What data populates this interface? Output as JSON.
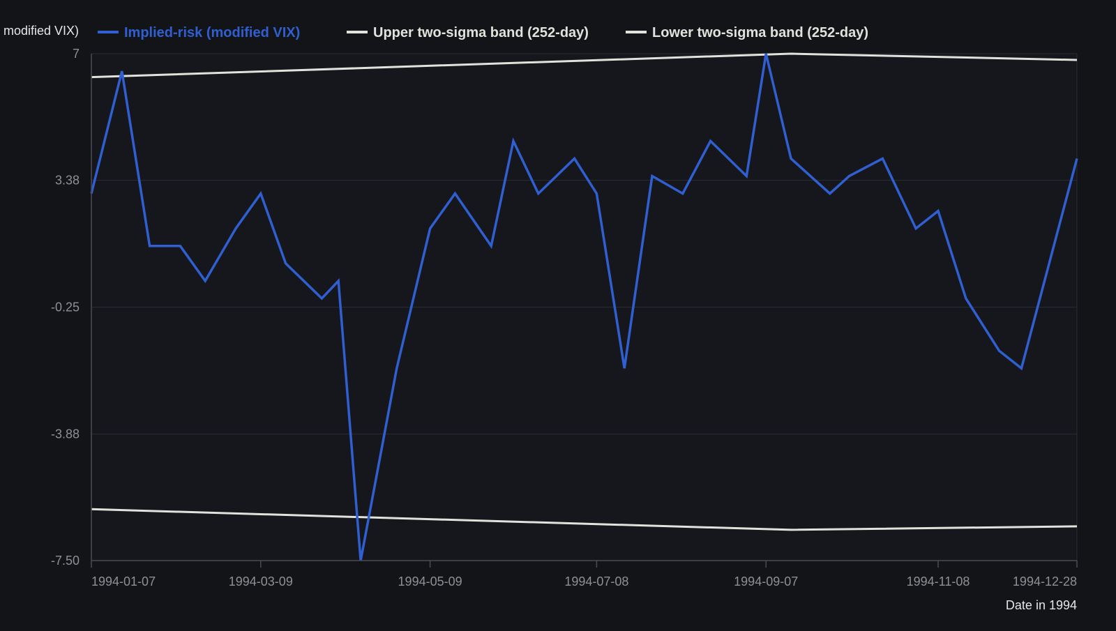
{
  "theme": {
    "background": "#131417",
    "plot_background": "#16171c",
    "grid_color": "#2a2c33",
    "axis_color": "#4a4c55",
    "tick_text_color": "#8e9096",
    "axis_title_color": "#e6e6e6"
  },
  "chart_data": {
    "type": "line",
    "title": "",
    "xlabel": "Date in 1994",
    "ylabel": "modified VIX)",
    "ylim": [
      -7.5,
      7
    ],
    "y_ticks": [
      7,
      3.38,
      -0.25,
      -3.88,
      -7.5
    ],
    "y_tick_labels": [
      "7",
      "3.38",
      "-0.25",
      "-3.88",
      "-7.50"
    ],
    "xlim": [
      "1994-01-07",
      "1994-12-28"
    ],
    "x_ticks": [
      "1994-01-07",
      "1994-03-09",
      "1994-05-09",
      "1994-07-08",
      "1994-09-07",
      "1994-11-08",
      "1994-12-28"
    ],
    "grid": true,
    "legend_position": "top",
    "series": [
      {
        "name": "Implied-risk (modified VIX)",
        "color": "#2f5fd0",
        "points": [
          [
            "1994-01-07",
            3.0
          ],
          [
            "1994-01-18",
            6.5
          ],
          [
            "1994-01-28",
            1.5
          ],
          [
            "1994-02-08",
            1.5
          ],
          [
            "1994-02-17",
            0.5
          ],
          [
            "1994-02-28",
            2.0
          ],
          [
            "1994-03-09",
            3.0
          ],
          [
            "1994-03-18",
            1.0
          ],
          [
            "1994-03-31",
            0.0
          ],
          [
            "1994-04-06",
            0.5
          ],
          [
            "1994-04-14",
            -7.5
          ],
          [
            "1994-04-27",
            -2.0
          ],
          [
            "1994-05-09",
            2.0
          ],
          [
            "1994-05-18",
            3.0
          ],
          [
            "1994-05-31",
            1.5
          ],
          [
            "1994-06-08",
            4.5
          ],
          [
            "1994-06-17",
            3.0
          ],
          [
            "1994-06-30",
            4.0
          ],
          [
            "1994-07-08",
            3.0
          ],
          [
            "1994-07-18",
            -2.0
          ],
          [
            "1994-07-28",
            3.5
          ],
          [
            "1994-08-08",
            3.0
          ],
          [
            "1994-08-18",
            4.5
          ],
          [
            "1994-08-31",
            3.5
          ],
          [
            "1994-09-07",
            7.0
          ],
          [
            "1994-09-16",
            4.0
          ],
          [
            "1994-09-30",
            3.0
          ],
          [
            "1994-10-07",
            3.5
          ],
          [
            "1994-10-19",
            4.0
          ],
          [
            "1994-10-31",
            2.0
          ],
          [
            "1994-11-08",
            2.5
          ],
          [
            "1994-11-18",
            0.0
          ],
          [
            "1994-11-30",
            -1.5
          ],
          [
            "1994-12-08",
            -2.0
          ],
          [
            "1994-12-28",
            4.0
          ]
        ]
      },
      {
        "name": "Upper two-sigma band (252-day)",
        "color": "#e2e2dc",
        "points": [
          [
            "1994-01-07",
            6.33
          ],
          [
            "1994-09-16",
            7.0
          ],
          [
            "1994-12-28",
            6.82
          ]
        ]
      },
      {
        "name": "Lower two-sigma band (252-day)",
        "color": "#e2e2dc",
        "points": [
          [
            "1994-01-07",
            -6.03
          ],
          [
            "1994-09-16",
            -6.62
          ],
          [
            "1994-12-28",
            -6.52
          ]
        ]
      }
    ]
  }
}
